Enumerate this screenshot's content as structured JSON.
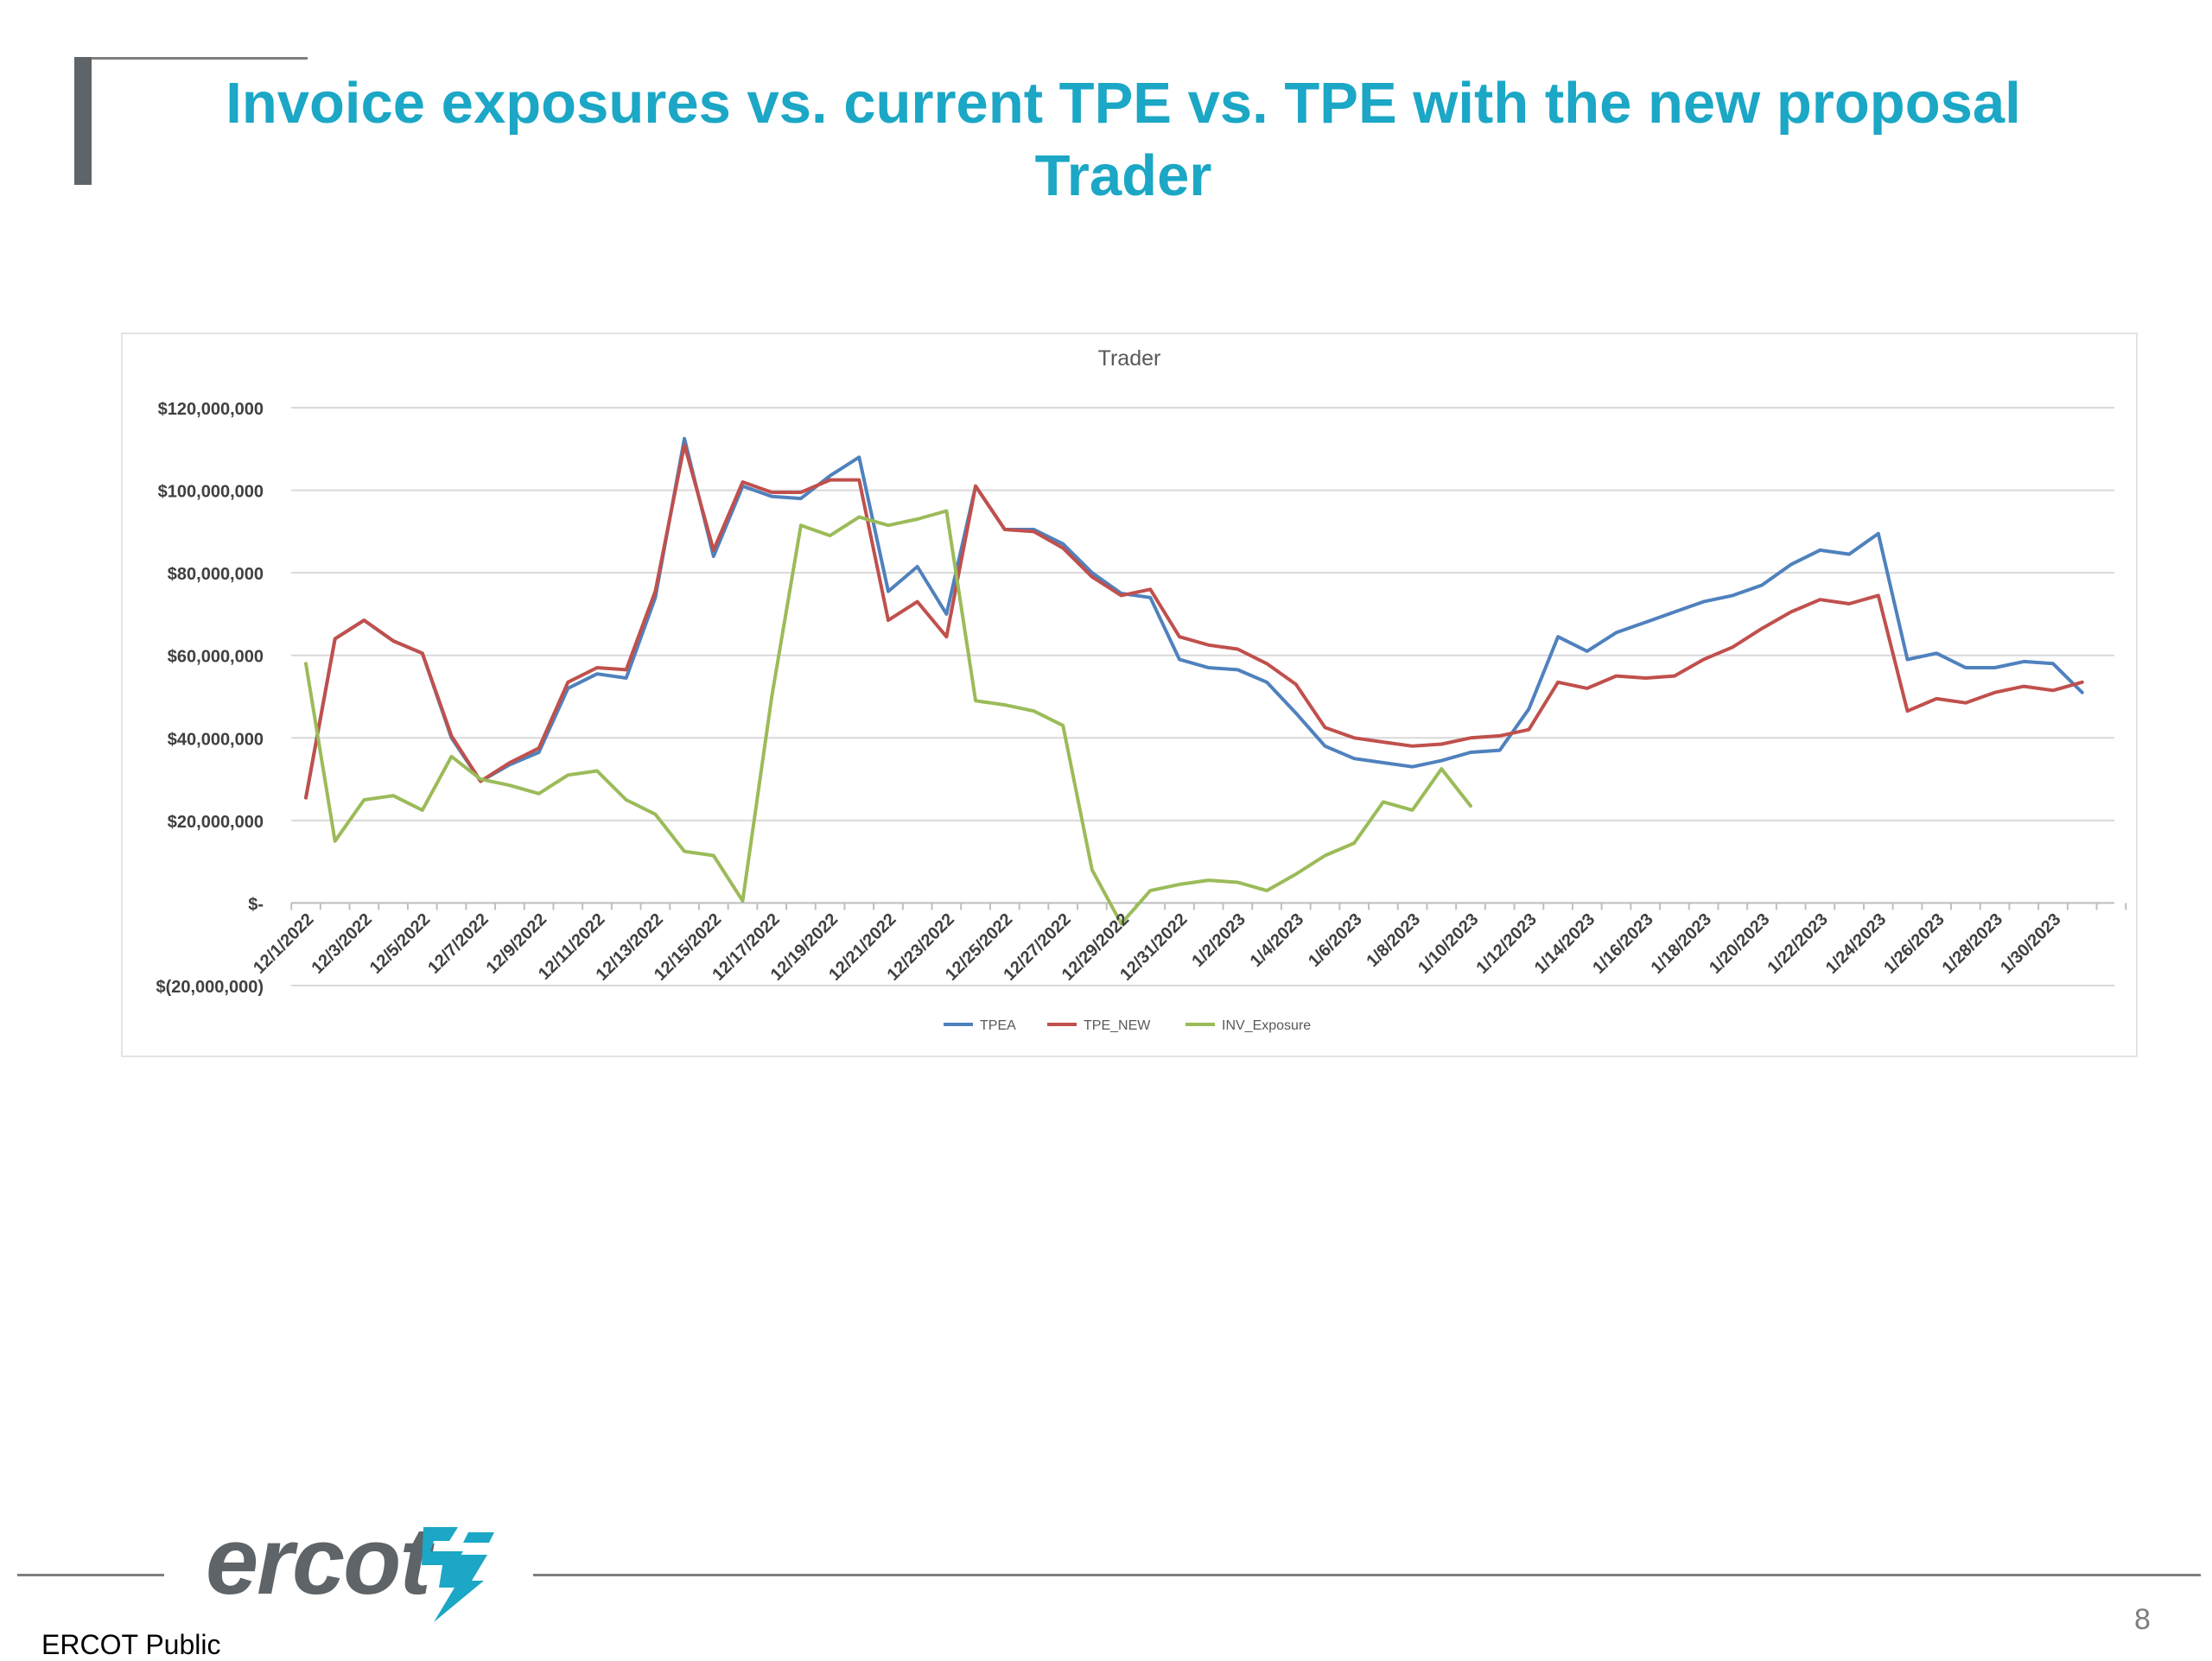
{
  "slide": {
    "title_line1": "Invoice exposures vs. current TPE vs. TPE with the new proposal",
    "title_line2": "Trader",
    "page_number": "8",
    "footer_label": "ERCOT Public",
    "logo_text": "ercot",
    "logo_icon": "ercot-lightning-logo",
    "accent_color": "#1BA7C5"
  },
  "chart_data": {
    "type": "line",
    "title": "Trader",
    "xlabel": "",
    "ylabel": "",
    "ylim": [
      -20000000,
      120000000
    ],
    "yticks": [
      -20000000,
      0,
      20000000,
      40000000,
      60000000,
      80000000,
      100000000,
      120000000
    ],
    "ytick_labels": [
      "$(20,000,000)",
      "$-",
      "$20,000,000",
      "$40,000,000",
      "$60,000,000",
      "$80,000,000",
      "$100,000,000",
      "$120,000,000"
    ],
    "grid": true,
    "legend": "bottom",
    "categories": [
      "12/1/2022",
      "12/2/2022",
      "12/3/2022",
      "12/4/2022",
      "12/5/2022",
      "12/6/2022",
      "12/7/2022",
      "12/8/2022",
      "12/9/2022",
      "12/10/2022",
      "12/11/2022",
      "12/12/2022",
      "12/13/2022",
      "12/14/2022",
      "12/15/2022",
      "12/16/2022",
      "12/17/2022",
      "12/18/2022",
      "12/19/2022",
      "12/20/2022",
      "12/21/2022",
      "12/22/2022",
      "12/23/2022",
      "12/24/2022",
      "12/25/2022",
      "12/26/2022",
      "12/27/2022",
      "12/28/2022",
      "12/29/2022",
      "12/30/2022",
      "12/31/2022",
      "1/1/2023",
      "1/2/2023",
      "1/3/2023",
      "1/4/2023",
      "1/5/2023",
      "1/6/2023",
      "1/7/2023",
      "1/8/2023",
      "1/9/2023",
      "1/10/2023",
      "1/11/2023",
      "1/12/2023",
      "1/13/2023",
      "1/14/2023",
      "1/15/2023",
      "1/16/2023",
      "1/17/2023",
      "1/18/2023",
      "1/19/2023",
      "1/20/2023",
      "1/21/2023",
      "1/22/2023",
      "1/23/2023",
      "1/24/2023",
      "1/25/2023",
      "1/26/2023",
      "1/27/2023",
      "1/28/2023",
      "1/29/2023",
      "1/30/2023",
      "1/31/2023",
      "2/1/2023"
    ],
    "x_tick_labels": [
      "12/1/2022",
      "12/3/2022",
      "12/5/2022",
      "12/7/2022",
      "12/9/2022",
      "12/11/2022",
      "12/13/2022",
      "12/15/2022",
      "12/17/2022",
      "12/19/2022",
      "12/21/2022",
      "12/23/2022",
      "12/25/2022",
      "12/27/2022",
      "12/29/2022",
      "12/31/2022",
      "1/2/2023",
      "1/4/2023",
      "1/6/2023",
      "1/8/2023",
      "1/10/2023",
      "1/12/2023",
      "1/14/2023",
      "1/16/2023",
      "1/18/2023",
      "1/20/2023",
      "1/22/2023",
      "1/24/2023",
      "1/26/2023",
      "1/28/2023",
      "1/30/2023"
    ],
    "series": [
      {
        "name": "TPEA",
        "color": "#4F81BD",
        "values": [
          25500000,
          64000000,
          68500000,
          63500000,
          60500000,
          40000000,
          29500000,
          33500000,
          36500000,
          52000000,
          55500000,
          54500000,
          74000000,
          112500000,
          84000000,
          101000000,
          98500000,
          98000000,
          103500000,
          108000000,
          75500000,
          81500000,
          70000000,
          101000000,
          90500000,
          90500000,
          87000000,
          80000000,
          75000000,
          74000000,
          59000000,
          57000000,
          56500000,
          53500000,
          46000000,
          38000000,
          35000000,
          34000000,
          33000000,
          34500000,
          36500000,
          37000000,
          47000000,
          64500000,
          61000000,
          65500000,
          68000000,
          70500000,
          73000000,
          74500000,
          77000000,
          82000000,
          85500000,
          84500000,
          89500000,
          59000000,
          60500000,
          57000000,
          57000000,
          58500000,
          58000000,
          51000000,
          null
        ]
      },
      {
        "name": "TPE_NEW",
        "color": "#C0504D",
        "values": [
          25500000,
          64000000,
          68500000,
          63500000,
          60500000,
          40500000,
          29500000,
          34000000,
          37500000,
          53500000,
          57000000,
          56500000,
          75500000,
          111000000,
          85500000,
          102000000,
          99500000,
          99500000,
          102500000,
          102500000,
          68500000,
          73000000,
          64500000,
          101000000,
          90500000,
          90000000,
          86000000,
          79000000,
          74500000,
          76000000,
          64500000,
          62500000,
          61500000,
          58000000,
          53000000,
          42500000,
          40000000,
          39000000,
          38000000,
          38500000,
          40000000,
          40500000,
          42000000,
          53500000,
          52000000,
          55000000,
          54500000,
          55000000,
          59000000,
          62000000,
          66500000,
          70500000,
          73500000,
          72500000,
          74500000,
          46500000,
          49500000,
          48500000,
          51000000,
          52500000,
          51500000,
          53500000,
          null
        ]
      },
      {
        "name": "INV_Exposure",
        "color": "#9BBB59",
        "values": [
          58000000,
          15000000,
          25000000,
          26000000,
          22500000,
          35500000,
          30000000,
          28500000,
          26500000,
          31000000,
          32000000,
          25000000,
          21500000,
          12500000,
          11500000,
          500000,
          50000000,
          91500000,
          89000000,
          93500000,
          91500000,
          93000000,
          95000000,
          49000000,
          48000000,
          46500000,
          43000000,
          8000000,
          -5000000,
          3000000,
          4500000,
          5500000,
          5000000,
          3000000,
          7000000,
          11500000,
          14500000,
          24500000,
          22500000,
          32500000,
          23500000,
          null,
          null,
          null,
          null,
          null,
          null,
          null,
          null,
          null,
          null,
          null,
          null,
          null,
          null,
          null,
          null,
          null,
          null,
          null,
          null,
          null,
          null
        ]
      }
    ]
  }
}
